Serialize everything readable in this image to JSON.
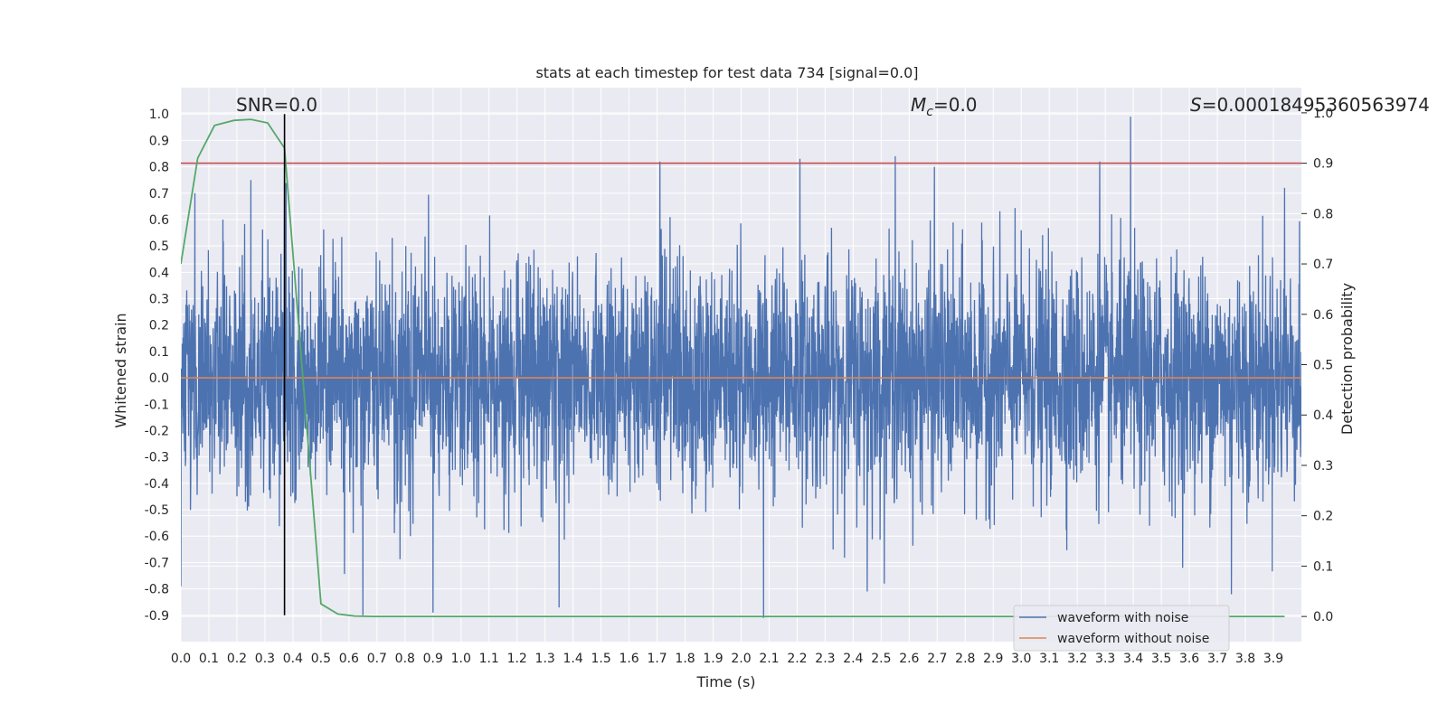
{
  "chart_data": {
    "type": "line",
    "title": "stats at each timestep for test data 734 [signal=0.0]",
    "xlabel": "Time (s)",
    "ylabel": "Whitened strain",
    "y2label": "Detection probability",
    "xlim": [
      0.0,
      4.0
    ],
    "ylim": [
      -1.0,
      1.1
    ],
    "y2lim": [
      -0.05,
      1.05
    ],
    "xticks": [
      "0.0",
      "0.1",
      "0.2",
      "0.3",
      "0.4",
      "0.5",
      "0.6",
      "0.7",
      "0.8",
      "0.9",
      "1.0",
      "1.1",
      "1.2",
      "1.3",
      "1.4",
      "1.5",
      "1.6",
      "1.7",
      "1.8",
      "1.9",
      "2.0",
      "2.1",
      "2.2",
      "2.3",
      "2.4",
      "2.5",
      "2.6",
      "2.7",
      "2.8",
      "2.9",
      "3.0",
      "3.1",
      "3.2",
      "3.3",
      "3.4",
      "3.5",
      "3.6",
      "3.7",
      "3.8",
      "3.9"
    ],
    "yticks": [
      "1.0",
      "0.9",
      "0.8",
      "0.7",
      "0.6",
      "0.5",
      "0.4",
      "0.3",
      "0.2",
      "0.1",
      "0.0",
      "-0.1",
      "-0.2",
      "-0.3",
      "-0.4",
      "-0.5",
      "-0.6",
      "-0.7",
      "-0.8",
      "-0.9"
    ],
    "y2ticks": [
      "1.0",
      "0.9",
      "0.8",
      "0.7",
      "0.6",
      "0.5",
      "0.4",
      "0.3",
      "0.2",
      "0.1",
      "0.0"
    ],
    "grid": true,
    "legend_position": "lower-right",
    "annotations": {
      "snr": "SNR=0.0",
      "mc_symbol": "M",
      "mc_sub": "c",
      "mc_value": "=0.0",
      "s_symbol": "S",
      "s_value": "=0.00018495360563974"
    },
    "series": [
      {
        "name": "waveform with noise",
        "color": "#4c72b0",
        "axis": "left",
        "t_range": [
          0.0,
          4.0
        ],
        "amplitude_envelope": 0.35,
        "notable_peaks": [
          {
            "t": 0.05,
            "y": 0.7
          },
          {
            "t": 0.15,
            "y": 0.6
          },
          {
            "t": 0.25,
            "y": 0.75
          },
          {
            "t": 0.37,
            "y": 0.75
          },
          {
            "t": 0.9,
            "y": 0.73
          },
          {
            "t": 1.71,
            "y": 0.82
          },
          {
            "t": 2.21,
            "y": 0.83
          },
          {
            "t": 2.55,
            "y": 0.84
          },
          {
            "t": 2.69,
            "y": 0.8
          },
          {
            "t": 3.28,
            "y": 0.82
          },
          {
            "t": 3.39,
            "y": 0.99
          },
          {
            "t": 3.94,
            "y": 0.72
          }
        ],
        "notable_troughs": [
          {
            "t": 0.0,
            "y": -0.79
          },
          {
            "t": 0.65,
            "y": -0.9
          },
          {
            "t": 0.9,
            "y": -0.89
          },
          {
            "t": 1.35,
            "y": -0.87
          },
          {
            "t": 2.08,
            "y": -0.91
          },
          {
            "t": 2.45,
            "y": -0.81
          },
          {
            "t": 3.75,
            "y": -0.82
          }
        ]
      },
      {
        "name": "waveform without noise",
        "color": "#dd8452",
        "axis": "left",
        "x": [
          0.0,
          4.0
        ],
        "values": [
          0.0,
          0.0
        ]
      },
      {
        "name": "detection probability",
        "color": "#55a868",
        "axis": "right",
        "x": [
          0.0,
          0.06,
          0.12,
          0.19,
          0.25,
          0.31,
          0.37,
          0.5,
          0.56,
          0.62,
          0.69,
          1.0,
          2.0,
          3.0,
          3.94
        ],
        "values": [
          0.7,
          0.91,
          0.975,
          0.985,
          0.987,
          0.98,
          0.93,
          0.025,
          0.005,
          0.001,
          0.0,
          0.0,
          0.0,
          0.0,
          0.0
        ]
      }
    ],
    "threshold": {
      "axis": "right",
      "value": 0.9,
      "color": "#c44e52"
    },
    "marker_line": {
      "x": 0.37,
      "y_from": -0.9,
      "y_to": 1.0,
      "color": "#000000"
    }
  }
}
